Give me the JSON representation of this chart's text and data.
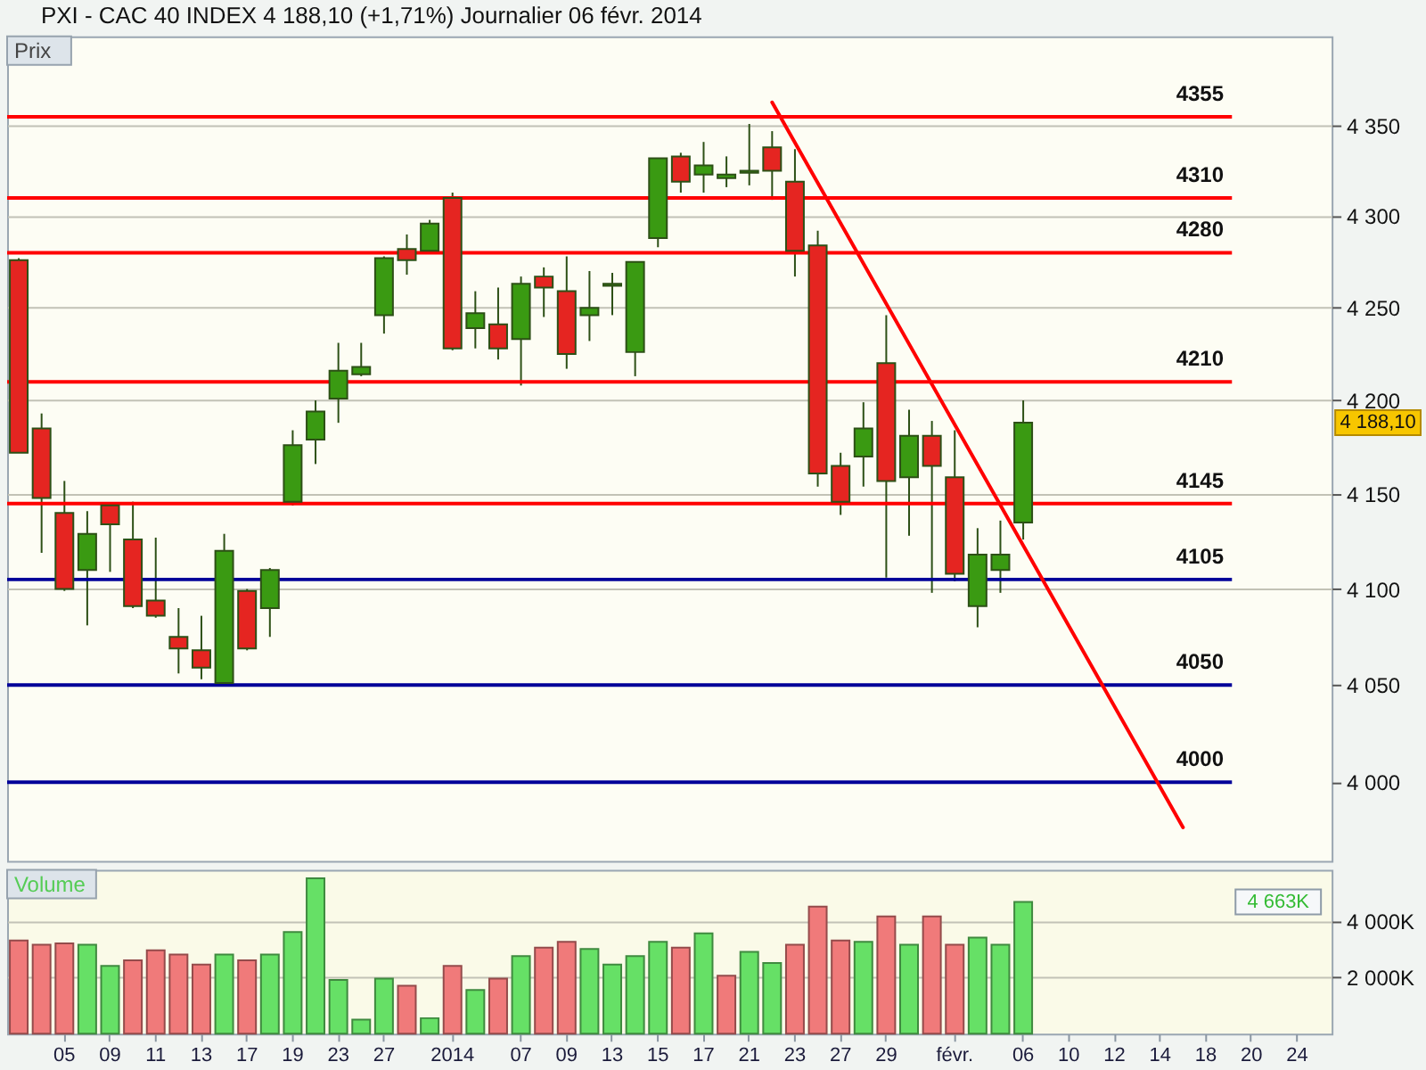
{
  "chart_data": [
    {
      "type": "candlestick",
      "title": "PXI - CAC 40 INDEX   4 188,10 (+1,71%)   Journalier  06 févr. 2014",
      "ylabel": "Prix",
      "categories": [
        null,
        null,
        null,
        null,
        null,
        null,
        null,
        null,
        null,
        null,
        null,
        null,
        null,
        null,
        null,
        null,
        null,
        null,
        null,
        null,
        null,
        null,
        null,
        null,
        null,
        null,
        null,
        null,
        null,
        null,
        null,
        null,
        null,
        null,
        null,
        null,
        null,
        null,
        null,
        null,
        null,
        null,
        null,
        null,
        null,
        null,
        null,
        null,
        null,
        null,
        null,
        null,
        null,
        null,
        null,
        null,
        null,
        null
      ],
      "ohlc": [
        [
          4276,
          4277,
          4172,
          4172
        ],
        [
          4185,
          4193,
          4119,
          4148
        ],
        [
          4140,
          4157,
          4099,
          4100
        ],
        [
          4110,
          4141,
          4081,
          4129
        ],
        [
          4144,
          4144,
          4109,
          4134
        ],
        [
          4126,
          4146,
          4090,
          4091
        ],
        [
          4094,
          4127,
          4085,
          4086
        ],
        [
          4075,
          4090,
          4056,
          4069
        ],
        [
          4068,
          4086,
          4053,
          4059
        ],
        [
          4051,
          4129,
          4051,
          4120
        ],
        [
          4099,
          4100,
          4068,
          4069
        ],
        [
          4090,
          4111,
          4075,
          4110
        ],
        [
          4146,
          4184,
          4144,
          4176
        ],
        [
          4179,
          4200,
          4166,
          4194
        ],
        [
          4201,
          4231,
          4188,
          4216
        ],
        [
          4214,
          4231,
          4213,
          4218
        ],
        [
          4246,
          4278,
          4236,
          4277
        ],
        [
          4282,
          4290,
          4268,
          4276
        ],
        [
          4281,
          4298,
          4281,
          4296
        ],
        [
          4310,
          4313,
          4227,
          4228
        ],
        [
          4239,
          4259,
          4228,
          4247
        ],
        [
          4241,
          4261,
          4222,
          4228
        ],
        [
          4233,
          4267,
          4208,
          4263
        ],
        [
          4267,
          4272,
          4245,
          4261
        ],
        [
          4259,
          4278,
          4217,
          4225
        ],
        [
          4246,
          4270,
          4232,
          4250
        ],
        [
          4262,
          4269,
          4246,
          4263
        ],
        [
          4226,
          4275,
          4213,
          4275
        ],
        [
          4288,
          4332,
          4283,
          4332
        ],
        [
          4333,
          4335,
          4313,
          4319
        ],
        [
          4323,
          4341,
          4313,
          4328
        ],
        [
          4321,
          4333,
          4316,
          4323
        ],
        [
          4324,
          4351,
          4317,
          4325
        ],
        [
          4338,
          4347,
          4309,
          4325
        ],
        [
          4319,
          4337,
          4267,
          4281
        ],
        [
          4284,
          4292,
          4154,
          4161
        ],
        [
          4165,
          4172,
          4139,
          4146
        ],
        [
          4170,
          4199,
          4154,
          4185
        ],
        [
          4220,
          4246,
          4106,
          4157
        ],
        [
          4159,
          4195,
          4128,
          4181
        ],
        [
          4181,
          4189,
          4098,
          4165
        ],
        [
          4159,
          4184,
          4104,
          4108
        ],
        [
          4091,
          4132,
          4080,
          4118
        ],
        [
          4110,
          4136,
          4098,
          4118
        ],
        [
          4135,
          4200,
          4126,
          4188.1
        ],
        null,
        null,
        null,
        null,
        null,
        null,
        null,
        null,
        null,
        null,
        null,
        null,
        null
      ],
      "colors": [
        "#e52521",
        "#e52521",
        "#e52521",
        "#3a9a12",
        "#e52521",
        "#e52521",
        "#e52521",
        "#e52521",
        "#e52521",
        "#3a9a12",
        "#e52521",
        "#3a9a12",
        "#3a9a12",
        "#3a9a12",
        "#3a9a12",
        "#3a9a12",
        "#3a9a12",
        "#e52521",
        "#3a9a12",
        "#e52521",
        "#3a9a12",
        "#e52521",
        "#3a9a12",
        "#e52521",
        "#e52521",
        "#3a9a12",
        "#3a9a12",
        "#3a9a12",
        "#3a9a12",
        "#e52521",
        "#3a9a12",
        "#3a9a12",
        "#3a9a12",
        "#e52521",
        "#e52521",
        "#e52521",
        "#e52521",
        "#3a9a12",
        "#e52521",
        "#3a9a12",
        "#e52521",
        "#e52521",
        "#3a9a12",
        "#3a9a12",
        "#3a9a12",
        null,
        null,
        null,
        null,
        null,
        null,
        null,
        null,
        null,
        null,
        null,
        null,
        null
      ],
      "series": [
        {
          "type": "line",
          "color": "#ff0000",
          "values": [
            null,
            null,
            null,
            null,
            null,
            null,
            null,
            null,
            null,
            null,
            null,
            null,
            null,
            null,
            null,
            null,
            null,
            null,
            null,
            null,
            null,
            null,
            null,
            null,
            null,
            null,
            null,
            null,
            null,
            null,
            null,
            null,
            null,
            4363,
            null,
            null,
            null,
            null,
            null,
            null,
            null,
            null,
            null,
            null,
            null,
            null,
            null,
            null,
            null,
            null,
            null,
            3977,
            null,
            null,
            null,
            null,
            null,
            null
          ]
        }
      ],
      "ref_lines": [
        {
          "axis": "y",
          "value": 4355,
          "label": "4355",
          "color": "#ff0000"
        },
        {
          "axis": "y",
          "value": 4310,
          "label": "4310",
          "color": "#ff0000"
        },
        {
          "axis": "y",
          "value": 4280,
          "label": "4280",
          "color": "#ff0000"
        },
        {
          "axis": "y",
          "value": 4210,
          "label": "4210",
          "color": "#ff0000"
        },
        {
          "axis": "y",
          "value": 4145,
          "label": "4145",
          "color": "#ff0000"
        },
        {
          "axis": "y",
          "value": 4105,
          "label": "4105",
          "color": "#000099"
        },
        {
          "axis": "y",
          "value": 4050,
          "label": "4050",
          "color": "#000099"
        },
        {
          "axis": "y",
          "value": 4000,
          "label": "4000",
          "color": "#000099"
        }
      ],
      "annotations": [
        "4 188,10"
      ],
      "ylim": [
        3960,
        4400
      ],
      "yticks": [
        {
          "value": 4000,
          "label": "4 000"
        },
        {
          "value": 4050,
          "label": "4 050"
        },
        {
          "value": 4100,
          "label": "4 100"
        },
        {
          "value": 4150,
          "label": "4 150"
        },
        {
          "value": 4200,
          "label": "4 200"
        },
        {
          "value": 4250,
          "label": "4 250"
        },
        {
          "value": 4300,
          "label": "4 300"
        },
        {
          "value": 4350,
          "label": "4 350"
        }
      ],
      "log": true,
      "grid": "y"
    },
    {
      "type": "bar",
      "ylabel": "Volume",
      "categories": [
        null,
        null,
        "05",
        null,
        "09",
        null,
        "11",
        null,
        "13",
        null,
        "17",
        null,
        "19",
        null,
        "23",
        null,
        "27",
        null,
        null,
        "2014",
        null,
        null,
        "07",
        null,
        "09",
        null,
        "13",
        null,
        "15",
        null,
        "17",
        null,
        "21",
        null,
        "23",
        null,
        "27",
        null,
        "29",
        null,
        null,
        "févr.",
        null,
        null,
        "06",
        null,
        "10",
        null,
        "12",
        null,
        "14",
        null,
        "18",
        null,
        "20",
        null,
        "24",
        null
      ],
      "values": [
        3300,
        3150,
        3200,
        3150,
        2400,
        2600,
        2950,
        2800,
        2450,
        2800,
        2600,
        2800,
        3600,
        5500,
        1900,
        500,
        1950,
        1700,
        550,
        2400,
        1550,
        1950,
        2750,
        3050,
        3250,
        3000,
        2450,
        2750,
        3250,
        3050,
        3550,
        2050,
        2900,
        2500,
        3150,
        4500,
        3300,
        3250,
        4150,
        3150,
        4150,
        3150,
        3400,
        3150,
        4663,
        null,
        null,
        null,
        null,
        null,
        null,
        null,
        null,
        null,
        null,
        null,
        null,
        null
      ],
      "colors": [
        "#f07a7a",
        "#f07a7a",
        "#f07a7a",
        "#66e066",
        "#66e066",
        "#f07a7a",
        "#f07a7a",
        "#f07a7a",
        "#f07a7a",
        "#66e066",
        "#f07a7a",
        "#66e066",
        "#66e066",
        "#66e066",
        "#66e066",
        "#66e066",
        "#66e066",
        "#f07a7a",
        "#66e066",
        "#f07a7a",
        "#66e066",
        "#f07a7a",
        "#66e066",
        "#f07a7a",
        "#f07a7a",
        "#66e066",
        "#66e066",
        "#66e066",
        "#66e066",
        "#f07a7a",
        "#66e066",
        "#f07a7a",
        "#66e066",
        "#66e066",
        "#f07a7a",
        "#f07a7a",
        "#f07a7a",
        "#66e066",
        "#f07a7a",
        "#66e066",
        "#f07a7a",
        "#f07a7a",
        "#66e066",
        "#66e066",
        "#66e066",
        null,
        null,
        null,
        null,
        null,
        null,
        null,
        null,
        null,
        null,
        null,
        null,
        null
      ],
      "annotations": [
        "4 663K"
      ],
      "ylim": [
        0,
        5800
      ],
      "yticks": [
        {
          "value": 2000,
          "label": "2 000K"
        },
        {
          "value": 4000,
          "label": "4 000K"
        }
      ],
      "grid": "y"
    }
  ]
}
